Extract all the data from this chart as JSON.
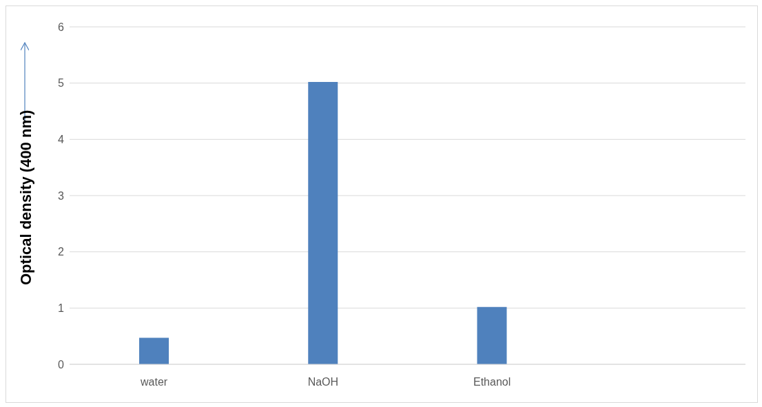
{
  "chart_data": {
    "type": "bar",
    "ylabel": "Optical density (400 nm)",
    "categories": [
      "water",
      "NaOH",
      "Ethanol",
      null
    ],
    "series": [
      {
        "color": "#4f81bd",
        "values": [
          0.47,
          5.02,
          1.02,
          null
        ]
      }
    ],
    "ylim": [
      0,
      6
    ],
    "yticks": [
      0,
      1,
      2,
      3,
      4,
      5,
      6
    ],
    "grid": "y"
  }
}
